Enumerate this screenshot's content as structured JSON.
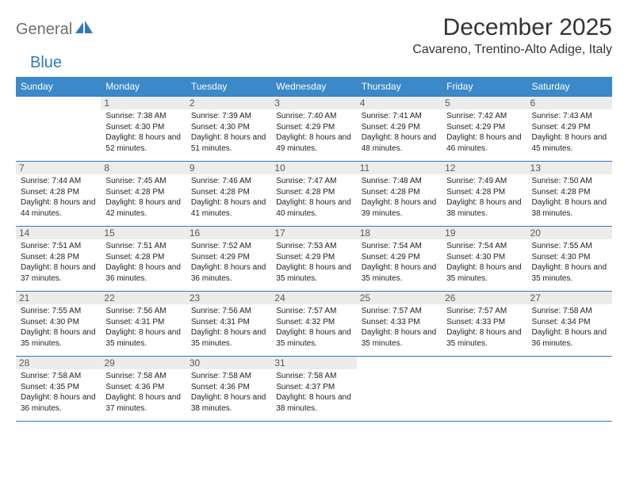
{
  "logo": {
    "gray": "General",
    "blue": "Blue"
  },
  "title": "December 2025",
  "location": "Cavareno, Trentino-Alto Adige, Italy",
  "colors": {
    "header_bg": "#3b89c9",
    "border": "#2d78c4",
    "daynum_bg": "#ececec",
    "text": "#333333"
  },
  "day_headers": [
    "Sunday",
    "Monday",
    "Tuesday",
    "Wednesday",
    "Thursday",
    "Friday",
    "Saturday"
  ],
  "weeks": [
    [
      {
        "n": "",
        "sr": "",
        "ss": "",
        "dl": ""
      },
      {
        "n": "1",
        "sr": "7:38 AM",
        "ss": "4:30 PM",
        "dl": "8 hours and 52 minutes."
      },
      {
        "n": "2",
        "sr": "7:39 AM",
        "ss": "4:30 PM",
        "dl": "8 hours and 51 minutes."
      },
      {
        "n": "3",
        "sr": "7:40 AM",
        "ss": "4:29 PM",
        "dl": "8 hours and 49 minutes."
      },
      {
        "n": "4",
        "sr": "7:41 AM",
        "ss": "4:29 PM",
        "dl": "8 hours and 48 minutes."
      },
      {
        "n": "5",
        "sr": "7:42 AM",
        "ss": "4:29 PM",
        "dl": "8 hours and 46 minutes."
      },
      {
        "n": "6",
        "sr": "7:43 AM",
        "ss": "4:29 PM",
        "dl": "8 hours and 45 minutes."
      }
    ],
    [
      {
        "n": "7",
        "sr": "7:44 AM",
        "ss": "4:28 PM",
        "dl": "8 hours and 44 minutes."
      },
      {
        "n": "8",
        "sr": "7:45 AM",
        "ss": "4:28 PM",
        "dl": "8 hours and 42 minutes."
      },
      {
        "n": "9",
        "sr": "7:46 AM",
        "ss": "4:28 PM",
        "dl": "8 hours and 41 minutes."
      },
      {
        "n": "10",
        "sr": "7:47 AM",
        "ss": "4:28 PM",
        "dl": "8 hours and 40 minutes."
      },
      {
        "n": "11",
        "sr": "7:48 AM",
        "ss": "4:28 PM",
        "dl": "8 hours and 39 minutes."
      },
      {
        "n": "12",
        "sr": "7:49 AM",
        "ss": "4:28 PM",
        "dl": "8 hours and 38 minutes."
      },
      {
        "n": "13",
        "sr": "7:50 AM",
        "ss": "4:28 PM",
        "dl": "8 hours and 38 minutes."
      }
    ],
    [
      {
        "n": "14",
        "sr": "7:51 AM",
        "ss": "4:28 PM",
        "dl": "8 hours and 37 minutes."
      },
      {
        "n": "15",
        "sr": "7:51 AM",
        "ss": "4:28 PM",
        "dl": "8 hours and 36 minutes."
      },
      {
        "n": "16",
        "sr": "7:52 AM",
        "ss": "4:29 PM",
        "dl": "8 hours and 36 minutes."
      },
      {
        "n": "17",
        "sr": "7:53 AM",
        "ss": "4:29 PM",
        "dl": "8 hours and 35 minutes."
      },
      {
        "n": "18",
        "sr": "7:54 AM",
        "ss": "4:29 PM",
        "dl": "8 hours and 35 minutes."
      },
      {
        "n": "19",
        "sr": "7:54 AM",
        "ss": "4:30 PM",
        "dl": "8 hours and 35 minutes."
      },
      {
        "n": "20",
        "sr": "7:55 AM",
        "ss": "4:30 PM",
        "dl": "8 hours and 35 minutes."
      }
    ],
    [
      {
        "n": "21",
        "sr": "7:55 AM",
        "ss": "4:30 PM",
        "dl": "8 hours and 35 minutes."
      },
      {
        "n": "22",
        "sr": "7:56 AM",
        "ss": "4:31 PM",
        "dl": "8 hours and 35 minutes."
      },
      {
        "n": "23",
        "sr": "7:56 AM",
        "ss": "4:31 PM",
        "dl": "8 hours and 35 minutes."
      },
      {
        "n": "24",
        "sr": "7:57 AM",
        "ss": "4:32 PM",
        "dl": "8 hours and 35 minutes."
      },
      {
        "n": "25",
        "sr": "7:57 AM",
        "ss": "4:33 PM",
        "dl": "8 hours and 35 minutes."
      },
      {
        "n": "26",
        "sr": "7:57 AM",
        "ss": "4:33 PM",
        "dl": "8 hours and 35 minutes."
      },
      {
        "n": "27",
        "sr": "7:58 AM",
        "ss": "4:34 PM",
        "dl": "8 hours and 36 minutes."
      }
    ],
    [
      {
        "n": "28",
        "sr": "7:58 AM",
        "ss": "4:35 PM",
        "dl": "8 hours and 36 minutes."
      },
      {
        "n": "29",
        "sr": "7:58 AM",
        "ss": "4:36 PM",
        "dl": "8 hours and 37 minutes."
      },
      {
        "n": "30",
        "sr": "7:58 AM",
        "ss": "4:36 PM",
        "dl": "8 hours and 38 minutes."
      },
      {
        "n": "31",
        "sr": "7:58 AM",
        "ss": "4:37 PM",
        "dl": "8 hours and 38 minutes."
      },
      {
        "n": "",
        "sr": "",
        "ss": "",
        "dl": ""
      },
      {
        "n": "",
        "sr": "",
        "ss": "",
        "dl": ""
      },
      {
        "n": "",
        "sr": "",
        "ss": "",
        "dl": ""
      }
    ]
  ],
  "labels": {
    "sunrise": "Sunrise: ",
    "sunset": "Sunset: ",
    "daylight": "Daylight: "
  }
}
